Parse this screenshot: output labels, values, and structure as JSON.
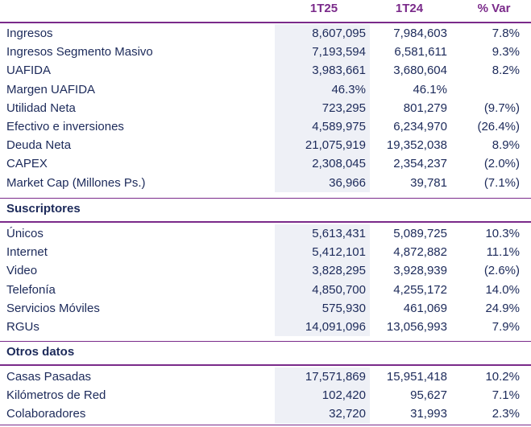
{
  "header": {
    "col1": "1T25",
    "col2": "1T24",
    "col3": "% Var"
  },
  "sections": [
    {
      "title": "",
      "rows": [
        {
          "label": "Ingresos",
          "v1": "8,607,095",
          "v2": "7,984,603",
          "v3": "7.8%"
        },
        {
          "label": "Ingresos Segmento Masivo",
          "v1": "7,193,594",
          "v2": "6,581,611",
          "v3": "9.3%"
        },
        {
          "label": "UAFIDA",
          "v1": "3,983,661",
          "v2": "3,680,604",
          "v3": "8.2%"
        },
        {
          "label": "Margen UAFIDA",
          "v1": "46.3%",
          "v2": "46.1%",
          "v3": ""
        },
        {
          "label": "Utilidad Neta",
          "v1": "723,295",
          "v2": "801,279",
          "v3": "(9.7%)"
        },
        {
          "label": "Efectivo e inversiones",
          "v1": "4,589,975",
          "v2": "6,234,970",
          "v3": "(26.4%)"
        },
        {
          "label": "Deuda Neta",
          "v1": "21,075,919",
          "v2": "19,352,038",
          "v3": "8.9%"
        },
        {
          "label": "CAPEX",
          "v1": "2,308,045",
          "v2": "2,354,237",
          "v3": "(2.0%)"
        },
        {
          "label": "Market Cap (Millones Ps.)",
          "v1": "36,966",
          "v2": "39,781",
          "v3": "(7.1%)"
        }
      ]
    },
    {
      "title": "Suscriptores",
      "rows": [
        {
          "label": "Únicos",
          "v1": "5,613,431",
          "v2": "5,089,725",
          "v3": "10.3%"
        },
        {
          "label": "Internet",
          "v1": "5,412,101",
          "v2": "4,872,882",
          "v3": "11.1%"
        },
        {
          "label": "Video",
          "v1": "3,828,295",
          "v2": "3,928,939",
          "v3": "(2.6%)"
        },
        {
          "label": "Telefonía",
          "v1": "4,850,700",
          "v2": "4,255,172",
          "v3": "14.0%"
        },
        {
          "label": "Servicios Móviles",
          "v1": "575,930",
          "v2": "461,069",
          "v3": "24.9%"
        },
        {
          "label": "RGUs",
          "v1": "14,091,096",
          "v2": "13,056,993",
          "v3": "7.9%"
        }
      ]
    },
    {
      "title": "Otros datos",
      "rows": [
        {
          "label": "Casas Pasadas",
          "v1": "17,571,869",
          "v2": "15,951,418",
          "v3": "10.2%"
        },
        {
          "label": "Kilómetros de Red",
          "v1": "102,420",
          "v2": "95,627",
          "v3": "7.1%"
        },
        {
          "label": "Colaboradores",
          "v1": "32,720",
          "v2": "31,993",
          "v3": "2.3%"
        }
      ]
    }
  ]
}
